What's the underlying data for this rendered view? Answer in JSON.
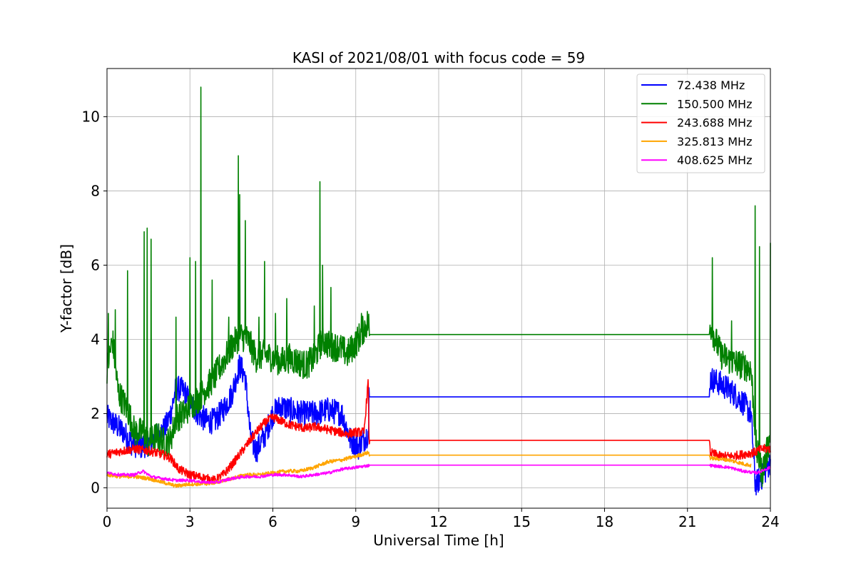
{
  "chart_data": {
    "type": "line",
    "title": "KASI of 2021/08/01 with focus code = 59",
    "xlabel": "Universal Time [h]",
    "ylabel": "Y-factor [dB]",
    "xlim": [
      0,
      24
    ],
    "ylim": [
      -0.55,
      11.3
    ],
    "xticks": [
      0,
      3,
      6,
      9,
      12,
      15,
      18,
      21,
      24
    ],
    "yticks": [
      0,
      2,
      4,
      6,
      8,
      10
    ],
    "grid": true,
    "legend_position": "top-right",
    "series": [
      {
        "name": " 72.438 MHz",
        "color": "#0000ff",
        "points": [
          [
            0,
            1.9
          ],
          [
            0.3,
            1.7
          ],
          [
            0.6,
            1.5
          ],
          [
            0.9,
            1.2
          ],
          [
            1.2,
            1.1
          ],
          [
            1.5,
            1.2
          ],
          [
            1.8,
            1.4
          ],
          [
            2.1,
            1.6
          ],
          [
            2.3,
            2.0
          ],
          [
            2.5,
            2.7
          ],
          [
            2.8,
            2.6
          ],
          [
            3.0,
            2.3
          ],
          [
            3.3,
            2.0
          ],
          [
            3.6,
            1.8
          ],
          [
            3.9,
            1.8
          ],
          [
            4.2,
            2.1
          ],
          [
            4.5,
            2.5
          ],
          [
            4.8,
            3.3
          ],
          [
            5.0,
            3.0
          ],
          [
            5.2,
            1.3
          ],
          [
            5.4,
            1.0
          ],
          [
            5.7,
            1.4
          ],
          [
            6.0,
            2.0
          ],
          [
            6.3,
            2.2
          ],
          [
            6.6,
            2.1
          ],
          [
            7.0,
            2.0
          ],
          [
            7.5,
            2.0
          ],
          [
            8.0,
            2.1
          ],
          [
            8.5,
            2.0
          ],
          [
            8.8,
            1.3
          ],
          [
            9.1,
            1.1
          ],
          [
            9.47,
            1.5
          ],
          [
            9.48,
            2.45
          ],
          [
            21.8,
            2.45
          ],
          [
            21.82,
            2.95
          ],
          [
            22.2,
            2.8
          ],
          [
            22.6,
            2.6
          ],
          [
            23.0,
            2.3
          ],
          [
            23.3,
            2.0
          ],
          [
            23.45,
            0.1
          ],
          [
            23.7,
            0.3
          ],
          [
            24,
            0.7
          ]
        ]
      },
      {
        "name": "150.500 MHz",
        "color": "#008000",
        "points": [
          [
            0,
            3.2
          ],
          [
            0.2,
            4.0
          ],
          [
            0.4,
            2.6
          ],
          [
            0.6,
            2.3
          ],
          [
            0.8,
            2.0
          ],
          [
            1.0,
            1.5
          ],
          [
            1.3,
            1.5
          ],
          [
            1.5,
            1.2
          ],
          [
            1.8,
            1.4
          ],
          [
            2.1,
            1.2
          ],
          [
            2.3,
            1.3
          ],
          [
            2.5,
            1.9
          ],
          [
            2.8,
            2.0
          ],
          [
            3.0,
            2.2
          ],
          [
            3.3,
            2.4
          ],
          [
            3.6,
            2.7
          ],
          [
            3.9,
            3.0
          ],
          [
            4.2,
            3.4
          ],
          [
            4.5,
            3.8
          ],
          [
            4.8,
            4.1
          ],
          [
            5.1,
            4.0
          ],
          [
            5.4,
            3.5
          ],
          [
            5.7,
            3.6
          ],
          [
            6.0,
            3.5
          ],
          [
            6.3,
            3.4
          ],
          [
            6.6,
            3.5
          ],
          [
            6.9,
            3.4
          ],
          [
            7.2,
            3.3
          ],
          [
            7.5,
            3.5
          ],
          [
            7.8,
            4.0
          ],
          [
            8.1,
            3.8
          ],
          [
            8.4,
            3.8
          ],
          [
            8.7,
            3.6
          ],
          [
            9.0,
            3.9
          ],
          [
            9.3,
            4.3
          ],
          [
            9.47,
            4.5
          ],
          [
            9.48,
            4.13
          ],
          [
            21.8,
            4.13
          ],
          [
            21.82,
            4.4
          ],
          [
            22.2,
            3.6
          ],
          [
            22.6,
            3.4
          ],
          [
            23.0,
            3.3
          ],
          [
            23.3,
            3.2
          ],
          [
            23.5,
            1.0
          ],
          [
            23.7,
            0.4
          ],
          [
            24,
            1.4
          ]
        ],
        "spikes": [
          [
            0.05,
            4.7
          ],
          [
            0.3,
            4.8
          ],
          [
            0.75,
            5.85
          ],
          [
            1.35,
            6.9
          ],
          [
            1.45,
            7.0
          ],
          [
            1.6,
            6.7
          ],
          [
            2.5,
            4.6
          ],
          [
            3.0,
            6.2
          ],
          [
            3.2,
            6.1
          ],
          [
            3.4,
            10.8
          ],
          [
            3.8,
            5.6
          ],
          [
            4.4,
            4.6
          ],
          [
            4.75,
            8.95
          ],
          [
            4.8,
            7.9
          ],
          [
            5.0,
            7.2
          ],
          [
            5.5,
            4.6
          ],
          [
            5.7,
            6.1
          ],
          [
            6.1,
            4.7
          ],
          [
            6.5,
            5.1
          ],
          [
            7.5,
            4.9
          ],
          [
            7.7,
            8.25
          ],
          [
            7.8,
            6.0
          ],
          [
            8.1,
            5.4
          ],
          [
            9.2,
            4.7
          ],
          [
            21.9,
            6.2
          ],
          [
            22.6,
            4.5
          ],
          [
            23.45,
            7.6
          ],
          [
            23.6,
            6.5
          ],
          [
            24.0,
            6.6
          ]
        ]
      },
      {
        "name": "243.688 MHz",
        "color": "#ff0000",
        "points": [
          [
            0,
            0.9
          ],
          [
            0.3,
            0.95
          ],
          [
            0.6,
            1.0
          ],
          [
            1.0,
            1.05
          ],
          [
            1.5,
            1.0
          ],
          [
            2.0,
            0.9
          ],
          [
            2.3,
            0.8
          ],
          [
            2.6,
            0.5
          ],
          [
            3.0,
            0.35
          ],
          [
            3.3,
            0.3
          ],
          [
            3.6,
            0.25
          ],
          [
            3.9,
            0.2
          ],
          [
            4.2,
            0.35
          ],
          [
            4.5,
            0.6
          ],
          [
            4.8,
            0.9
          ],
          [
            5.1,
            1.2
          ],
          [
            5.4,
            1.5
          ],
          [
            5.7,
            1.75
          ],
          [
            6.0,
            1.9
          ],
          [
            6.3,
            1.8
          ],
          [
            6.6,
            1.7
          ],
          [
            6.9,
            1.65
          ],
          [
            7.2,
            1.6
          ],
          [
            7.5,
            1.65
          ],
          [
            7.8,
            1.6
          ],
          [
            8.1,
            1.55
          ],
          [
            8.4,
            1.5
          ],
          [
            8.7,
            1.45
          ],
          [
            9.0,
            1.5
          ],
          [
            9.3,
            1.5
          ],
          [
            9.45,
            2.9
          ],
          [
            9.48,
            1.28
          ],
          [
            21.8,
            1.28
          ],
          [
            21.82,
            0.95
          ],
          [
            22.2,
            0.85
          ],
          [
            22.6,
            0.85
          ],
          [
            23.0,
            0.9
          ],
          [
            23.4,
            0.95
          ],
          [
            23.7,
            1.05
          ],
          [
            24,
            1.05
          ]
        ]
      },
      {
        "name": "325.813 MHz",
        "color": "#ffa500",
        "points": [
          [
            0,
            0.35
          ],
          [
            0.5,
            0.3
          ],
          [
            1.0,
            0.3
          ],
          [
            1.5,
            0.25
          ],
          [
            2.0,
            0.15
          ],
          [
            2.5,
            0.05
          ],
          [
            3.0,
            0.1
          ],
          [
            3.5,
            0.1
          ],
          [
            4.0,
            0.15
          ],
          [
            4.5,
            0.25
          ],
          [
            5.0,
            0.35
          ],
          [
            5.5,
            0.35
          ],
          [
            6.0,
            0.4
          ],
          [
            6.5,
            0.45
          ],
          [
            7.0,
            0.45
          ],
          [
            7.5,
            0.55
          ],
          [
            8.0,
            0.7
          ],
          [
            8.5,
            0.75
          ],
          [
            9.0,
            0.85
          ],
          [
            9.47,
            0.95
          ],
          [
            9.48,
            0.88
          ],
          [
            21.8,
            0.88
          ],
          [
            21.82,
            0.8
          ],
          [
            22.5,
            0.75
          ],
          [
            23.0,
            0.65
          ],
          [
            23.3,
            0.6
          ]
        ]
      },
      {
        "name": "408.625 MHz",
        "color": "#ff00ff",
        "points": [
          [
            0,
            0.4
          ],
          [
            0.5,
            0.35
          ],
          [
            1.0,
            0.35
          ],
          [
            1.3,
            0.45
          ],
          [
            1.6,
            0.3
          ],
          [
            2.0,
            0.25
          ],
          [
            2.5,
            0.2
          ],
          [
            3.0,
            0.2
          ],
          [
            3.5,
            0.15
          ],
          [
            4.0,
            0.15
          ],
          [
            4.5,
            0.25
          ],
          [
            5.0,
            0.3
          ],
          [
            5.5,
            0.3
          ],
          [
            6.0,
            0.35
          ],
          [
            6.5,
            0.35
          ],
          [
            7.0,
            0.3
          ],
          [
            7.5,
            0.35
          ],
          [
            8.0,
            0.4
          ],
          [
            8.5,
            0.5
          ],
          [
            9.0,
            0.55
          ],
          [
            9.47,
            0.6
          ],
          [
            9.48,
            0.61
          ],
          [
            21.8,
            0.61
          ],
          [
            21.82,
            0.6
          ],
          [
            22.5,
            0.55
          ],
          [
            23.0,
            0.45
          ],
          [
            23.5,
            0.4
          ],
          [
            24,
            0.55
          ]
        ]
      }
    ]
  }
}
